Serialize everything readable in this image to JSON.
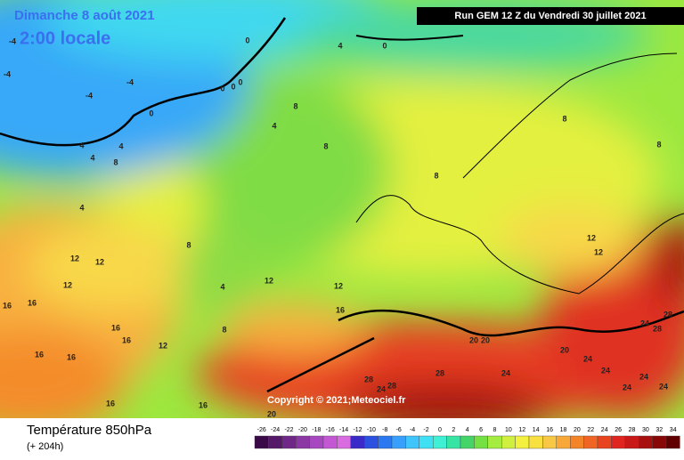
{
  "header": {
    "date": "Dimanche 8 août 2021",
    "time": "2:00 locale",
    "run": "Run GEM 12 Z du Vendredi 30 juillet 2021"
  },
  "copyright": "Copyright © 2021;Meteociel.fr",
  "legend": {
    "title": "Température 850hPa",
    "lead": "(+ 204h)",
    "ticks": [
      -26,
      -24,
      -22,
      -20,
      -18,
      -16,
      -14,
      -12,
      -10,
      -8,
      -6,
      -4,
      -2,
      0,
      2,
      4,
      6,
      8,
      10,
      12,
      14,
      16,
      18,
      20,
      22,
      24,
      26,
      28,
      30,
      32,
      34
    ],
    "colors": [
      "#3a0a48",
      "#561868",
      "#702888",
      "#8c38a4",
      "#a848c0",
      "#c458d4",
      "#d86ce0",
      "#3a2ac8",
      "#2c50e0",
      "#2c78f0",
      "#38a0fc",
      "#40c4fc",
      "#40e0f4",
      "#40f0d4",
      "#38e4a4",
      "#44d468",
      "#74e044",
      "#a4ec40",
      "#d0f040",
      "#f4f040",
      "#f8e040",
      "#f8c844",
      "#f8a838",
      "#f48428",
      "#f06424",
      "#e84420",
      "#e02420",
      "#c81818",
      "#a81010",
      "#880808",
      "#600000"
    ]
  },
  "contour_labels": [
    -4,
    -4,
    -4,
    -4,
    0,
    4,
    0,
    0,
    0,
    0,
    0,
    4,
    4,
    4,
    8,
    4,
    4,
    8,
    8,
    8,
    8,
    8,
    8,
    4,
    12,
    12,
    12,
    12,
    12,
    16,
    12,
    12,
    16,
    16,
    16,
    16,
    12,
    8,
    16,
    16,
    16,
    16,
    20,
    20,
    20,
    20,
    24,
    24,
    24,
    24,
    24,
    24,
    24,
    28,
    28,
    28,
    28,
    28,
    24
  ]
}
